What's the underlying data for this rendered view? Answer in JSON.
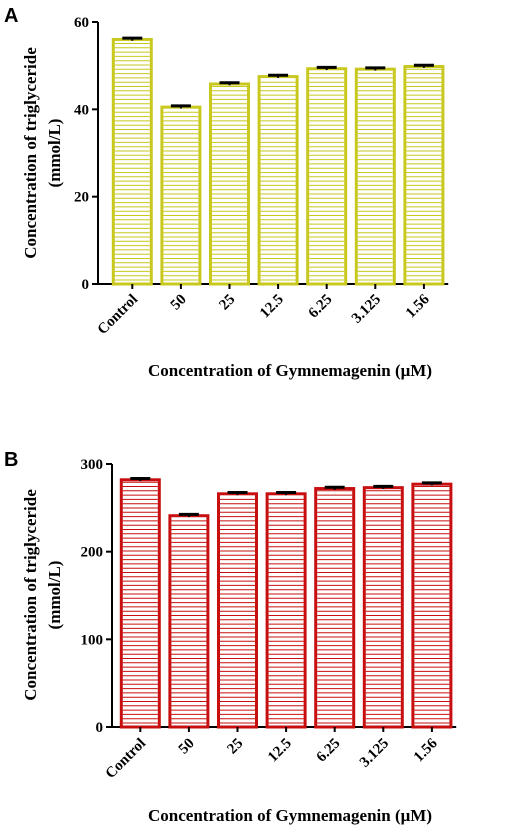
{
  "chart_data": [
    {
      "panel": "A",
      "type": "bar",
      "categories": [
        "Control",
        "50",
        "25",
        "12.5",
        "6.25",
        "3.125",
        "1.56"
      ],
      "values": [
        56,
        40.5,
        45.8,
        47.5,
        49.3,
        49.2,
        49.8
      ],
      "errors": [
        0.3,
        0.3,
        0.3,
        0.3,
        0.3,
        0.3,
        0.3
      ],
      "xlabel": "Concentration of Gymnemagenin (μM)",
      "ylabel_lines": [
        "Concentration of triglyceride",
        "(mmol/L)"
      ],
      "ylim": [
        0,
        60
      ],
      "yticks": [
        0,
        20,
        40,
        60
      ],
      "bar_color": "#c8c81e",
      "fill_pattern": "horizontal-stripes",
      "grid": false,
      "legend": "none"
    },
    {
      "panel": "B",
      "type": "bar",
      "categories": [
        "Control",
        "50",
        "25",
        "12.5",
        "6.25",
        "3.125",
        "1.56"
      ],
      "values": [
        282,
        241,
        266,
        266,
        272,
        273,
        277
      ],
      "errors": [
        1.5,
        1.5,
        1.5,
        1.5,
        1.5,
        1.5,
        1.5
      ],
      "xlabel": "Concentration of Gymnemagenin (μM)",
      "ylabel_lines": [
        "Concentration of triglyceride",
        "(mmol/L)"
      ],
      "ylim": [
        0,
        300
      ],
      "yticks": [
        0,
        100,
        200,
        300
      ],
      "bar_color": "#c80f0f",
      "fill_pattern": "horizontal-stripes",
      "grid": false,
      "legend": "none"
    }
  ]
}
